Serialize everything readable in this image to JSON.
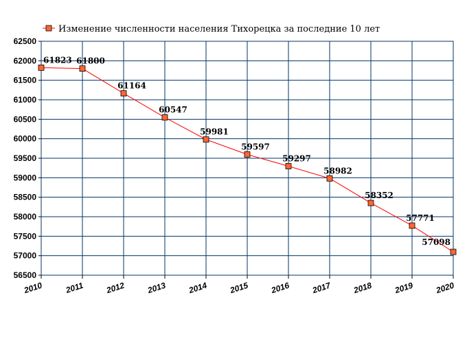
{
  "chart_data": {
    "type": "line",
    "title": "",
    "xlabel": "",
    "ylabel": "",
    "categories": [
      "2010",
      "2011",
      "2012",
      "2013",
      "2014",
      "2015",
      "2016",
      "2017",
      "2018",
      "2019",
      "2020"
    ],
    "series": [
      {
        "name": "Изменение численности населения Тихорецка за последние 10 лет",
        "values": [
          61823,
          61800,
          61164,
          60547,
          59981,
          59597,
          59297,
          58982,
          58352,
          57771,
          57098
        ],
        "labels": [
          "61823",
          "61800",
          "61164",
          "60547",
          "59981",
          "59597",
          "59297",
          "58982",
          "58352",
          "57771",
          "57098"
        ],
        "color": "#ff0000",
        "marker_color": "#ff6633"
      }
    ],
    "ylim": [
      56500,
      62500
    ],
    "yticks": [
      "56500",
      "57000",
      "57500",
      "58000",
      "58500",
      "59000",
      "59500",
      "60000",
      "60500",
      "61000",
      "61500",
      "62000",
      "62500"
    ],
    "grid": true,
    "grid_color": "#003366",
    "legend_position": "top-left"
  }
}
